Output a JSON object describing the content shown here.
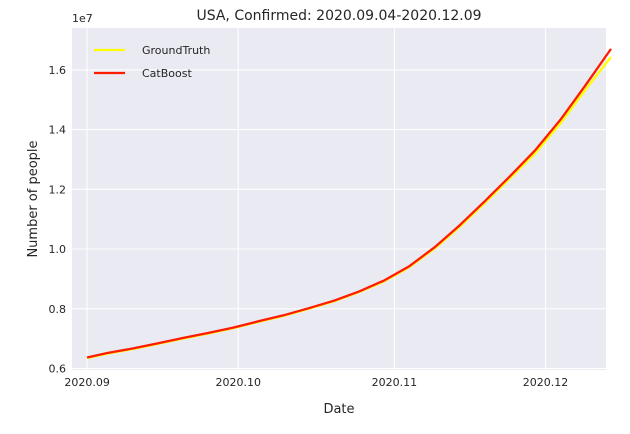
{
  "chart_data": {
    "type": "line",
    "title": "USA, Confirmed: 2020.09.04-2020.12.09",
    "xlabel": "Date",
    "ylabel": "Number of people",
    "y_offset_label": "1e7",
    "grid": true,
    "legend_position": "top-left",
    "xlim": [
      "2020-08-29",
      "2020-12-13"
    ],
    "ylim": [
      5950000,
      17400000
    ],
    "x_ticks": [
      {
        "date": "2020-09-01",
        "label": "2020.09"
      },
      {
        "date": "2020-10-01",
        "label": "2020.10"
      },
      {
        "date": "2020-11-01",
        "label": "2020.11"
      },
      {
        "date": "2020-12-01",
        "label": "2020.12"
      }
    ],
    "y_ticks": [
      {
        "value": 6000000,
        "label": "0.6"
      },
      {
        "value": 8000000,
        "label": "0.8"
      },
      {
        "value": 10000000,
        "label": "1.0"
      },
      {
        "value": 12000000,
        "label": "1.2"
      },
      {
        "value": 14000000,
        "label": "1.4"
      },
      {
        "value": 16000000,
        "label": "1.6"
      }
    ],
    "series": [
      {
        "name": "GroundTruth",
        "color": "#ffff00",
        "points": [
          [
            "2020-09-01",
            6350000
          ],
          [
            "2020-09-05",
            6500000
          ],
          [
            "2020-09-10",
            6650000
          ],
          [
            "2020-09-15",
            6820000
          ],
          [
            "2020-09-20",
            7000000
          ],
          [
            "2020-09-25",
            7170000
          ],
          [
            "2020-09-30",
            7350000
          ],
          [
            "2020-10-05",
            7560000
          ],
          [
            "2020-10-10",
            7760000
          ],
          [
            "2020-10-15",
            8000000
          ],
          [
            "2020-10-20",
            8250000
          ],
          [
            "2020-10-25",
            8560000
          ],
          [
            "2020-10-30",
            8920000
          ],
          [
            "2020-11-04",
            9400000
          ],
          [
            "2020-11-09",
            10020000
          ],
          [
            "2020-11-14",
            10750000
          ],
          [
            "2020-11-19",
            11550000
          ],
          [
            "2020-11-24",
            12380000
          ],
          [
            "2020-11-29",
            13220000
          ],
          [
            "2020-12-04",
            14220000
          ],
          [
            "2020-12-09",
            15350000
          ],
          [
            "2020-12-14",
            16430000
          ]
        ]
      },
      {
        "name": "CatBoost",
        "color": "#ff1a00",
        "points": [
          [
            "2020-09-01",
            6370000
          ],
          [
            "2020-09-05",
            6520000
          ],
          [
            "2020-09-10",
            6670000
          ],
          [
            "2020-09-15",
            6840000
          ],
          [
            "2020-09-20",
            7020000
          ],
          [
            "2020-09-25",
            7190000
          ],
          [
            "2020-09-30",
            7370000
          ],
          [
            "2020-10-05",
            7580000
          ],
          [
            "2020-10-10",
            7780000
          ],
          [
            "2020-10-15",
            8020000
          ],
          [
            "2020-10-20",
            8270000
          ],
          [
            "2020-10-25",
            8580000
          ],
          [
            "2020-10-30",
            8950000
          ],
          [
            "2020-11-04",
            9430000
          ],
          [
            "2020-11-09",
            10060000
          ],
          [
            "2020-11-14",
            10800000
          ],
          [
            "2020-11-19",
            11610000
          ],
          [
            "2020-11-24",
            12450000
          ],
          [
            "2020-11-29",
            13320000
          ],
          [
            "2020-12-04",
            14340000
          ],
          [
            "2020-12-09",
            15500000
          ],
          [
            "2020-12-14",
            16700000
          ]
        ]
      }
    ]
  }
}
